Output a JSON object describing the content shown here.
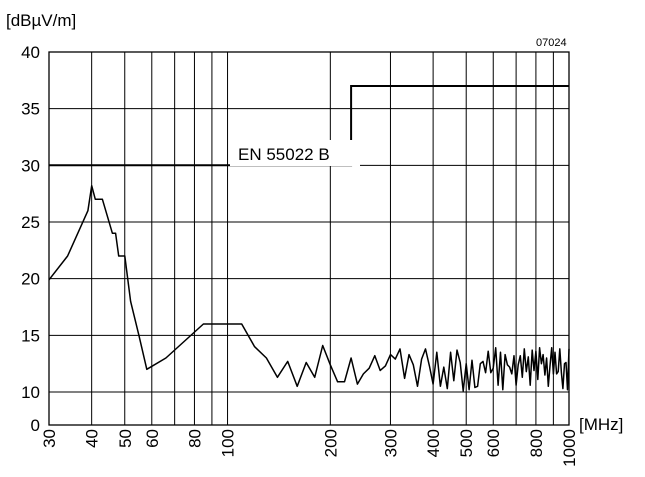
{
  "chart_data": {
    "type": "line",
    "title": "",
    "figure_code": "07024",
    "ylabel": "[dBµV/m]",
    "xlabel": "[MHz]",
    "x_scale": "log",
    "xlim": [
      30,
      1000
    ],
    "ylim": [
      0,
      40
    ],
    "y_ticks": [
      0,
      10,
      15,
      20,
      25,
      30,
      35,
      40
    ],
    "y_tick_labels": [
      "0",
      "10",
      "15",
      "20",
      "25",
      "30",
      "35",
      "40"
    ],
    "x_ticks": [
      30,
      40,
      50,
      60,
      80,
      100,
      200,
      300,
      400,
      500,
      600,
      800,
      1000
    ],
    "x_tick_labels": [
      "30",
      "40",
      "50",
      "60",
      "80",
      "100",
      "200",
      "300",
      "400",
      "500",
      "600",
      "800",
      "1000"
    ],
    "x_gridlines": [
      30,
      40,
      50,
      60,
      70,
      80,
      90,
      100,
      200,
      300,
      400,
      500,
      600,
      700,
      800,
      900,
      1000
    ],
    "y_gridlines": [
      10,
      15,
      20,
      25,
      30,
      35,
      40
    ],
    "grid": true,
    "annotations": [
      {
        "text": "EN 55022 B"
      }
    ],
    "limit_line": {
      "label": "EN 55022 B",
      "x": [
        30,
        230,
        230,
        1000
      ],
      "y": [
        30,
        30,
        37,
        37
      ]
    },
    "series": [
      {
        "x": [
          30,
          34,
          39,
          40,
          41,
          43,
          46,
          47,
          48,
          49,
          50,
          52,
          55,
          58,
          66,
          85,
          92,
          110,
          120,
          130,
          140,
          150,
          160,
          170,
          180,
          190,
          200,
          210,
          220,
          230,
          240,
          250,
          260,
          270,
          280,
          290,
          300,
          310,
          320,
          330,
          340,
          350,
          360,
          370,
          380,
          390,
          400,
          410,
          420,
          430,
          440,
          450,
          460,
          470,
          480,
          490,
          500,
          510,
          520,
          530,
          540,
          550,
          560,
          570,
          580,
          590,
          600,
          610,
          620,
          630,
          640,
          650,
          660,
          670,
          680,
          690,
          700,
          710,
          720,
          730,
          740,
          750,
          760,
          770,
          780,
          790,
          800,
          810,
          820,
          830,
          840,
          850,
          860,
          870,
          880,
          890,
          900,
          910,
          920,
          930,
          940,
          950,
          960,
          970,
          980,
          990,
          1000
        ],
        "y": [
          19.9,
          22,
          26,
          28.2,
          27,
          27,
          24,
          24,
          22,
          22,
          22,
          18,
          15,
          12,
          13,
          16,
          16,
          16,
          14,
          13,
          11.3,
          12.7,
          10.5,
          12.6,
          11.3,
          14.1,
          12.4,
          10.9,
          10.9,
          13.0,
          10.7,
          11.6,
          12.1,
          13.2,
          11.9,
          12.3,
          13.3,
          12.9,
          13.8,
          11.2,
          13.3,
          12.4,
          10.5,
          12.9,
          13.8,
          12.3,
          10.7,
          13.5,
          10.5,
          12.2,
          10.3,
          13.5,
          11.0,
          13.7,
          12.6,
          10.1,
          12.5,
          10.2,
          12.8,
          10.4,
          10.5,
          12.5,
          12.7,
          11.7,
          13.6,
          11.7,
          12.1,
          13.9,
          10.6,
          13.5,
          10.2,
          13.3,
          12.4,
          12.2,
          11.6,
          13.2,
          10.6,
          12.4,
          13.2,
          11.3,
          13.8,
          11.8,
          13.1,
          10.6,
          13.7,
          11.9,
          13.6,
          11.1,
          13.9,
          12.5,
          13.3,
          11.5,
          13.0,
          10.5,
          12.3,
          13.9,
          11.6,
          13.5,
          11.6,
          11.8,
          13.8,
          11.7,
          10.3,
          12.5,
          12.6,
          10.2,
          13.8
        ]
      }
    ]
  }
}
